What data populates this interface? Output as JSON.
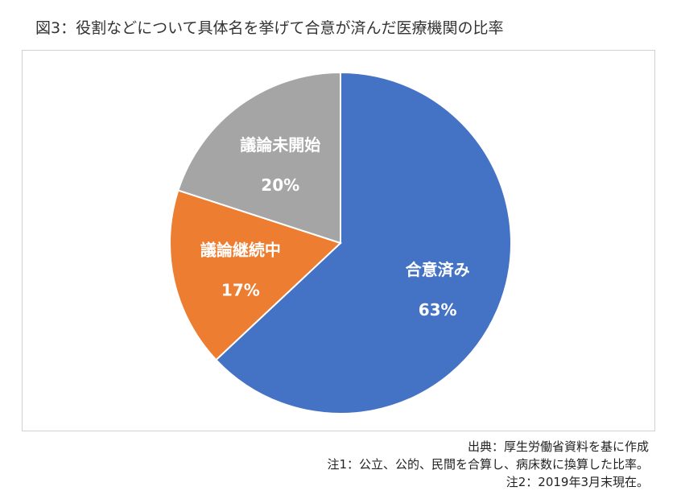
{
  "title": "図3：役割などについて具体名を挙げて合意が済んだ医療機関の比率",
  "chart_data": {
    "type": "pie",
    "categories": [
      "合意済み",
      "議論継続中",
      "議論未開始"
    ],
    "values": [
      63,
      17,
      20
    ],
    "labels": [
      "63%",
      "17%",
      "20%"
    ],
    "colors": [
      "#4472c4",
      "#ed7d31",
      "#a5a5a5"
    ]
  },
  "notes": [
    "出典：厚生労働省資料を基に作成",
    "注1：公立、公的、民間を合算し、病床数に換算した比率。",
    "注2：2019年3月末現在。"
  ]
}
